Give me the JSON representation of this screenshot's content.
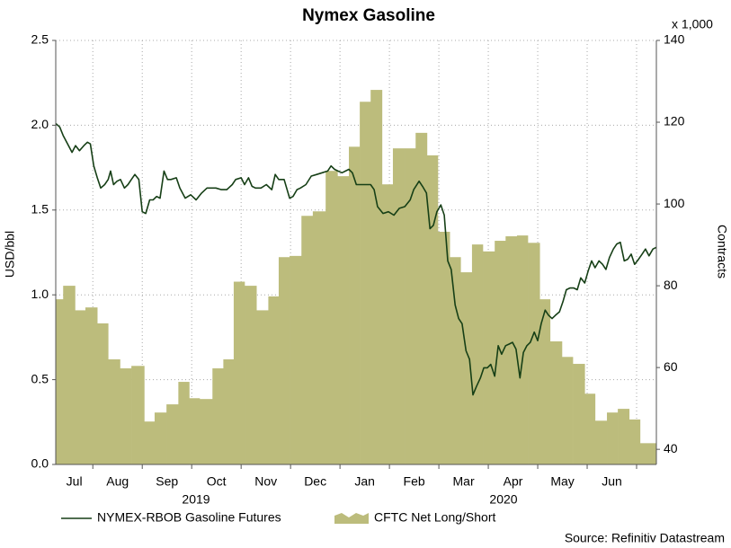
{
  "chart_data": {
    "type": "line",
    "title": "Nymex Gasoline",
    "y_label": "USD/bbl",
    "y2_label": "Contracts",
    "y2_unit": "x 1,000",
    "source": "Source: Refinitiv Datastream",
    "categories": [
      "Jul",
      "Aug",
      "Sep",
      "Oct",
      "Nov",
      "Dec",
      "Jan",
      "Feb",
      "Mar",
      "Apr",
      "May",
      "Jun"
    ],
    "year_labels": [
      "2019",
      "2020"
    ],
    "xlim": [
      0.25,
      12.4
    ],
    "xticks": [
      1,
      2,
      3,
      4,
      5,
      6,
      7,
      8,
      9,
      10,
      11,
      12
    ],
    "ylim": [
      0,
      2.5
    ],
    "yticks": [
      {
        "value": 0,
        "label": "0.0"
      },
      0.5,
      {
        "value": 1,
        "label": "1.0"
      },
      1.5,
      {
        "value": 2,
        "label": "2.0"
      },
      2.5
    ],
    "y2lim": [
      36.3,
      140
    ],
    "y2ticks": [
      40,
      60,
      80,
      100,
      120,
      140
    ],
    "grid": true,
    "legend": "bottom",
    "series": [
      {
        "name": "CFTC Net Long/Short",
        "type": "area",
        "axis": "y2",
        "color": "#bcbc7c",
        "x": [
          0.25,
          0.4,
          0.64,
          0.85,
          1.09,
          1.31,
          1.55,
          1.78,
          2.04,
          2.25,
          2.49,
          2.73,
          2.95,
          3.16,
          3.42,
          3.64,
          3.85,
          4.07,
          4.31,
          4.55,
          4.76,
          4.98,
          5.22,
          5.45,
          5.71,
          5.95,
          6.18,
          6.4,
          6.62,
          6.85,
          7.07,
          7.31,
          7.53,
          7.76,
          7.98,
          8.22,
          8.44,
          8.67,
          8.89,
          9.13,
          9.35,
          9.58,
          9.8,
          10.04,
          10.25,
          10.49,
          10.71,
          10.95,
          11.16,
          11.4,
          11.62,
          11.85,
          12.07
        ],
        "values": [
          76.7,
          80,
          74,
          74.7,
          70.8,
          62,
          59.8,
          60.4,
          46.8,
          49,
          51,
          56.5,
          52.5,
          52.3,
          59.8,
          62,
          81,
          80,
          74,
          77.4,
          87,
          87.3,
          97.1,
          98.2,
          108.1,
          106.8,
          114,
          125,
          127.9,
          104.8,
          113.6,
          113.6,
          117.4,
          111.9,
          93.2,
          87,
          83.3,
          90.1,
          88.4,
          91,
          92.1,
          92.3,
          90.5,
          76.7,
          66.4,
          62.6,
          60.9,
          53.6,
          47,
          49,
          49.9,
          47.3,
          41.5
        ]
      },
      {
        "name": "NYMEX-RBOB Gasoline Futures",
        "type": "line",
        "color": "#163f16",
        "x": [
          0.25,
          0.33,
          0.4,
          0.49,
          0.58,
          0.65,
          0.73,
          0.82,
          0.89,
          0.95,
          1.02,
          1.09,
          1.16,
          1.24,
          1.31,
          1.36,
          1.42,
          1.49,
          1.56,
          1.64,
          1.71,
          1.78,
          1.85,
          1.93,
          2.0,
          2.07,
          2.15,
          2.22,
          2.29,
          2.36,
          2.44,
          2.51,
          2.58,
          2.69,
          2.76,
          2.87,
          2.98,
          3.09,
          3.2,
          3.31,
          3.42,
          3.49,
          3.6,
          3.71,
          3.82,
          3.89,
          4.0,
          4.07,
          4.15,
          4.22,
          4.29,
          4.4,
          4.51,
          4.62,
          4.69,
          4.76,
          4.87,
          4.98,
          5.05,
          5.13,
          5.2,
          5.31,
          5.42,
          5.53,
          5.64,
          5.75,
          5.82,
          5.89,
          5.96,
          6.04,
          6.11,
          6.18,
          6.25,
          6.33,
          6.4,
          6.51,
          6.62,
          6.69,
          6.76,
          6.87,
          6.98,
          7.09,
          7.2,
          7.31,
          7.42,
          7.49,
          7.6,
          7.67,
          7.75,
          7.82,
          7.89,
          7.96,
          8.04,
          8.11,
          8.18,
          8.25,
          8.33,
          8.4,
          8.47,
          8.55,
          8.62,
          8.69,
          8.76,
          8.84,
          8.91,
          8.98,
          9.05,
          9.13,
          9.2,
          9.27,
          9.35,
          9.42,
          9.49,
          9.56,
          9.64,
          9.71,
          9.78,
          9.85,
          9.93,
          10.0,
          10.07,
          10.15,
          10.22,
          10.29,
          10.36,
          10.44,
          10.51,
          10.58,
          10.65,
          10.73,
          10.8,
          10.87,
          10.95,
          11.02,
          11.09,
          11.16,
          11.24,
          11.31,
          11.38,
          11.45,
          11.53,
          11.6,
          11.67,
          11.75,
          11.82,
          11.89,
          11.96,
          12.04,
          12.11,
          12.18,
          12.25,
          12.33,
          12.4
        ],
        "values": [
          2.01,
          1.99,
          1.94,
          1.89,
          1.84,
          1.88,
          1.85,
          1.88,
          1.9,
          1.89,
          1.76,
          1.69,
          1.63,
          1.65,
          1.68,
          1.73,
          1.65,
          1.67,
          1.68,
          1.63,
          1.65,
          1.68,
          1.71,
          1.68,
          1.49,
          1.48,
          1.56,
          1.56,
          1.58,
          1.57,
          1.73,
          1.68,
          1.68,
          1.69,
          1.63,
          1.57,
          1.59,
          1.56,
          1.6,
          1.63,
          1.63,
          1.63,
          1.62,
          1.62,
          1.65,
          1.68,
          1.69,
          1.65,
          1.69,
          1.64,
          1.63,
          1.63,
          1.65,
          1.62,
          1.71,
          1.68,
          1.68,
          1.57,
          1.58,
          1.62,
          1.63,
          1.65,
          1.7,
          1.71,
          1.72,
          1.73,
          1.76,
          1.74,
          1.73,
          1.72,
          1.73,
          1.74,
          1.72,
          1.65,
          1.65,
          1.65,
          1.65,
          1.62,
          1.52,
          1.48,
          1.49,
          1.47,
          1.51,
          1.52,
          1.56,
          1.62,
          1.67,
          1.64,
          1.6,
          1.39,
          1.41,
          1.49,
          1.53,
          1.47,
          1.2,
          1.15,
          0.94,
          0.86,
          0.83,
          0.67,
          0.62,
          0.41,
          0.46,
          0.51,
          0.57,
          0.57,
          0.59,
          0.52,
          0.7,
          0.65,
          0.7,
          0.71,
          0.72,
          0.68,
          0.51,
          0.66,
          0.7,
          0.72,
          0.78,
          0.73,
          0.83,
          0.91,
          0.88,
          0.86,
          0.88,
          0.9,
          0.96,
          1.03,
          1.04,
          1.04,
          1.03,
          1.1,
          1.07,
          1.14,
          1.2,
          1.16,
          1.2,
          1.18,
          1.15,
          1.22,
          1.27,
          1.3,
          1.31,
          1.2,
          1.21,
          1.24,
          1.18,
          1.21,
          1.24,
          1.27,
          1.23,
          1.27,
          1.28
        ]
      }
    ]
  }
}
